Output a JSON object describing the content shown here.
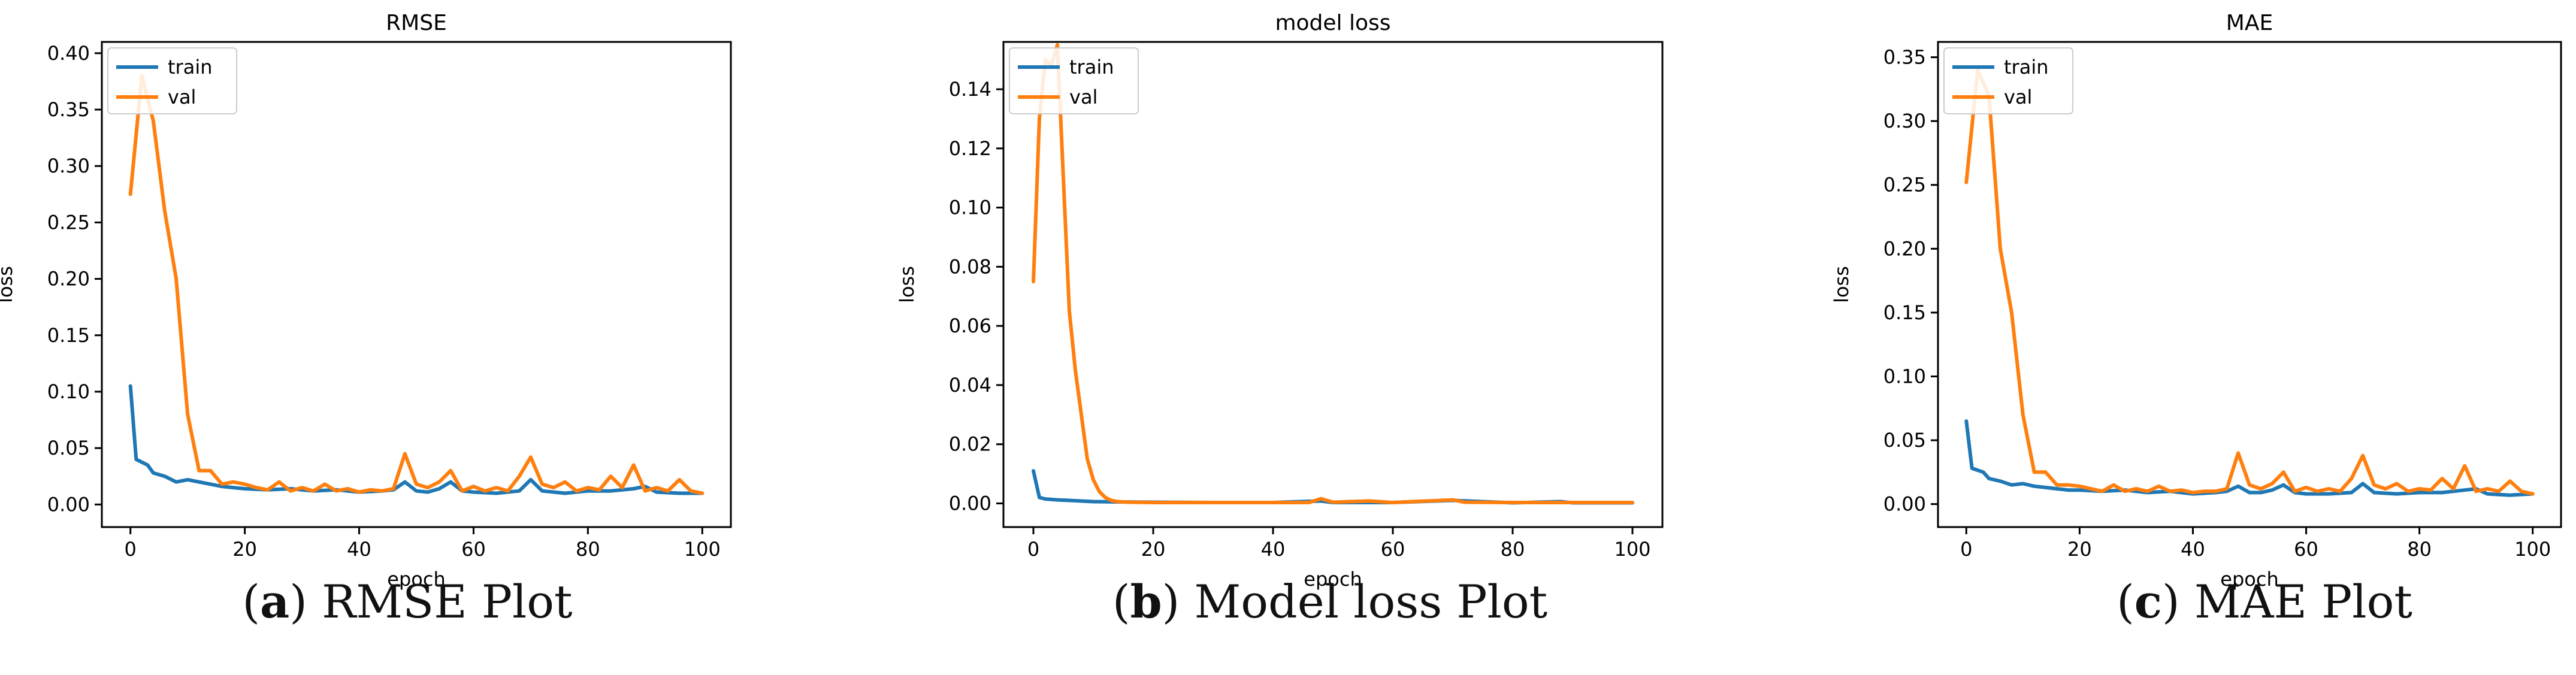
{
  "colors": {
    "train": "#1f77b4",
    "val": "#ff7f0e",
    "axis": "#000000",
    "background": "#ffffff"
  },
  "chart_data": [
    {
      "type": "line",
      "title": "RMSE",
      "xlabel": "epoch",
      "ylabel": "loss",
      "xlim": [
        -5,
        105
      ],
      "ylim": [
        -0.02,
        0.41
      ],
      "xticks": [
        0,
        20,
        40,
        60,
        80,
        100
      ],
      "xtick_labels": [
        "0",
        "20",
        "40",
        "60",
        "80",
        "100"
      ],
      "yticks": [
        0.0,
        0.05,
        0.1,
        0.15,
        0.2,
        0.25,
        0.3,
        0.35,
        0.4
      ],
      "ytick_labels": [
        "0.00",
        "0.05",
        "0.10",
        "0.15",
        "0.20",
        "0.25",
        "0.30",
        "0.35",
        "0.40"
      ],
      "legend_position": "top-left",
      "grid": false,
      "series": [
        {
          "name": "train",
          "color": "#1f77b4",
          "x": [
            0,
            1,
            3,
            4,
            6,
            8,
            10,
            12,
            14,
            16,
            18,
            20,
            24,
            28,
            32,
            36,
            40,
            44,
            46,
            48,
            50,
            52,
            54,
            56,
            58,
            60,
            64,
            68,
            70,
            72,
            76,
            80,
            84,
            88,
            90,
            92,
            96,
            100
          ],
          "y": [
            0.105,
            0.04,
            0.035,
            0.028,
            0.025,
            0.02,
            0.022,
            0.02,
            0.018,
            0.016,
            0.015,
            0.014,
            0.013,
            0.014,
            0.012,
            0.013,
            0.011,
            0.012,
            0.013,
            0.02,
            0.012,
            0.011,
            0.014,
            0.02,
            0.012,
            0.011,
            0.01,
            0.012,
            0.022,
            0.012,
            0.01,
            0.012,
            0.012,
            0.014,
            0.016,
            0.011,
            0.01,
            0.01
          ]
        },
        {
          "name": "val",
          "color": "#ff7f0e",
          "x": [
            0,
            2,
            4,
            6,
            8,
            10,
            12,
            14,
            16,
            18,
            20,
            22,
            24,
            26,
            28,
            30,
            32,
            34,
            36,
            38,
            40,
            42,
            44,
            46,
            48,
            50,
            52,
            54,
            56,
            58,
            60,
            62,
            64,
            66,
            68,
            70,
            72,
            74,
            76,
            78,
            80,
            82,
            84,
            86,
            88,
            90,
            92,
            94,
            96,
            98,
            100
          ],
          "y": [
            0.275,
            0.38,
            0.34,
            0.26,
            0.2,
            0.08,
            0.03,
            0.03,
            0.018,
            0.02,
            0.018,
            0.015,
            0.013,
            0.02,
            0.012,
            0.015,
            0.012,
            0.018,
            0.012,
            0.014,
            0.011,
            0.013,
            0.012,
            0.014,
            0.045,
            0.018,
            0.015,
            0.02,
            0.03,
            0.012,
            0.016,
            0.012,
            0.015,
            0.012,
            0.025,
            0.042,
            0.018,
            0.015,
            0.02,
            0.012,
            0.015,
            0.013,
            0.025,
            0.015,
            0.035,
            0.012,
            0.015,
            0.012,
            0.022,
            0.012,
            0.01
          ]
        }
      ]
    },
    {
      "type": "line",
      "title": "model loss",
      "xlabel": "epoch",
      "ylabel": "loss",
      "xlim": [
        -5,
        105
      ],
      "ylim": [
        -0.008,
        0.156
      ],
      "xticks": [
        0,
        20,
        40,
        60,
        80,
        100
      ],
      "xtick_labels": [
        "0",
        "20",
        "40",
        "60",
        "80",
        "100"
      ],
      "yticks": [
        0.0,
        0.02,
        0.04,
        0.06,
        0.08,
        0.1,
        0.12,
        0.14
      ],
      "ytick_labels": [
        "0.00",
        "0.02",
        "0.04",
        "0.06",
        "0.08",
        "0.10",
        "0.12",
        "0.14"
      ],
      "legend_position": "top-left",
      "grid": false,
      "series": [
        {
          "name": "train",
          "color": "#1f77b4",
          "x": [
            0,
            1,
            2,
            4,
            6,
            8,
            10,
            14,
            20,
            30,
            40,
            48,
            50,
            60,
            70,
            80,
            88,
            90,
            100
          ],
          "y": [
            0.011,
            0.002,
            0.0015,
            0.0012,
            0.001,
            0.0008,
            0.0006,
            0.0005,
            0.0004,
            0.0003,
            0.0003,
            0.0008,
            0.0003,
            0.0003,
            0.001,
            0.0002,
            0.0006,
            0.0002,
            0.0002
          ]
        },
        {
          "name": "val",
          "color": "#ff7f0e",
          "x": [
            0,
            1,
            2,
            3,
            4,
            5,
            6,
            7,
            8,
            9,
            10,
            11,
            12,
            13,
            14,
            16,
            20,
            30,
            40,
            46,
            48,
            50,
            56,
            60,
            70,
            72,
            80,
            90,
            100
          ],
          "y": [
            0.075,
            0.13,
            0.15,
            0.148,
            0.155,
            0.11,
            0.065,
            0.045,
            0.03,
            0.015,
            0.008,
            0.004,
            0.002,
            0.001,
            0.0006,
            0.0004,
            0.0003,
            0.0003,
            0.0003,
            0.0003,
            0.0016,
            0.0004,
            0.0008,
            0.0003,
            0.0012,
            0.0004,
            0.0003,
            0.0003,
            0.0003
          ]
        }
      ]
    },
    {
      "type": "line",
      "title": "MAE",
      "xlabel": "epoch",
      "ylabel": "loss",
      "xlim": [
        -5,
        105
      ],
      "ylim": [
        -0.018,
        0.362
      ],
      "xticks": [
        0,
        20,
        40,
        60,
        80,
        100
      ],
      "xtick_labels": [
        "0",
        "20",
        "40",
        "60",
        "80",
        "100"
      ],
      "yticks": [
        0.0,
        0.05,
        0.1,
        0.15,
        0.2,
        0.25,
        0.3,
        0.35
      ],
      "ytick_labels": [
        "0.00",
        "0.05",
        "0.10",
        "0.15",
        "0.20",
        "0.25",
        "0.30",
        "0.35"
      ],
      "legend_position": "top-left",
      "grid": false,
      "series": [
        {
          "name": "train",
          "color": "#1f77b4",
          "x": [
            0,
            1,
            3,
            4,
            6,
            8,
            10,
            12,
            14,
            16,
            18,
            20,
            24,
            28,
            32,
            36,
            40,
            44,
            46,
            48,
            50,
            52,
            54,
            56,
            58,
            60,
            64,
            68,
            70,
            72,
            76,
            80,
            84,
            88,
            90,
            92,
            96,
            100
          ],
          "y": [
            0.065,
            0.028,
            0.025,
            0.02,
            0.018,
            0.015,
            0.016,
            0.014,
            0.013,
            0.012,
            0.011,
            0.011,
            0.01,
            0.011,
            0.009,
            0.01,
            0.008,
            0.009,
            0.01,
            0.014,
            0.009,
            0.009,
            0.011,
            0.015,
            0.009,
            0.008,
            0.008,
            0.009,
            0.016,
            0.009,
            0.008,
            0.009,
            0.009,
            0.011,
            0.012,
            0.008,
            0.007,
            0.008
          ]
        },
        {
          "name": "val",
          "color": "#ff7f0e",
          "x": [
            0,
            2,
            4,
            6,
            8,
            10,
            12,
            14,
            16,
            18,
            20,
            22,
            24,
            26,
            28,
            30,
            32,
            34,
            36,
            38,
            40,
            42,
            44,
            46,
            48,
            50,
            52,
            54,
            56,
            58,
            60,
            62,
            64,
            66,
            68,
            70,
            72,
            74,
            76,
            78,
            80,
            82,
            84,
            86,
            88,
            90,
            92,
            94,
            96,
            98,
            100
          ],
          "y": [
            0.252,
            0.34,
            0.32,
            0.2,
            0.15,
            0.07,
            0.025,
            0.025,
            0.015,
            0.015,
            0.014,
            0.012,
            0.01,
            0.015,
            0.01,
            0.012,
            0.01,
            0.014,
            0.01,
            0.011,
            0.009,
            0.01,
            0.01,
            0.012,
            0.04,
            0.015,
            0.012,
            0.016,
            0.025,
            0.01,
            0.013,
            0.01,
            0.012,
            0.01,
            0.02,
            0.038,
            0.015,
            0.012,
            0.016,
            0.01,
            0.012,
            0.011,
            0.02,
            0.012,
            0.03,
            0.01,
            0.012,
            0.01,
            0.018,
            0.01,
            0.008
          ]
        }
      ]
    }
  ],
  "captions": [
    {
      "label": "a",
      "text": " RMSE Plot"
    },
    {
      "label": "b",
      "text": " Model loss Plot"
    },
    {
      "label": "c",
      "text": " MAE Plot"
    }
  ]
}
